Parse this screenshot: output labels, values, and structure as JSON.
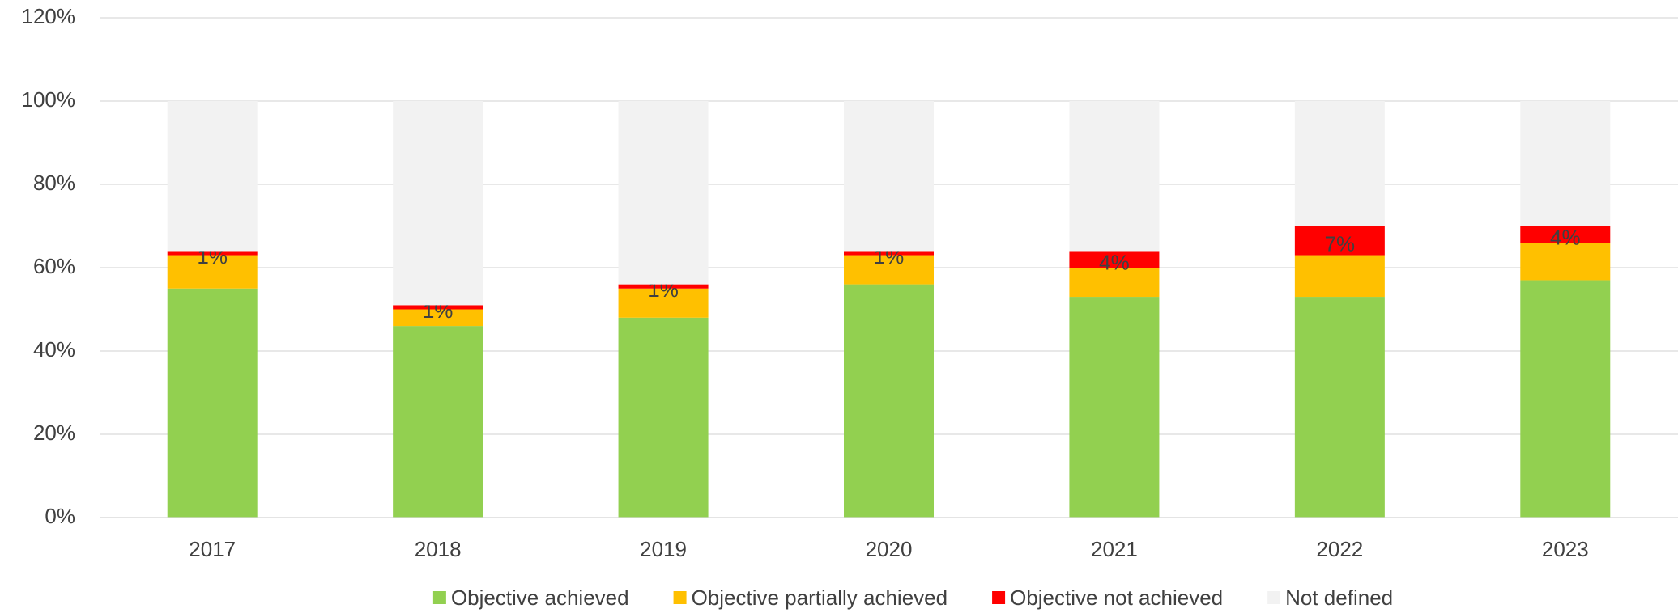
{
  "chart_data": {
    "type": "stacked_bar",
    "categories": [
      "2017",
      "2018",
      "2019",
      "2020",
      "2021",
      "2022",
      "2023"
    ],
    "series": [
      {
        "name": "Objective achieved",
        "color": "#92d050",
        "values": [
          55,
          46,
          48,
          56,
          53,
          53,
          57
        ]
      },
      {
        "name": "Objective partially achieved",
        "color": "#ffc000",
        "values": [
          8,
          4,
          7,
          7,
          7,
          10,
          9
        ]
      },
      {
        "name": "Objective not achieved",
        "color": "#ff0000",
        "values": [
          1,
          1,
          1,
          1,
          4,
          7,
          4
        ],
        "value_labels": [
          "1%",
          "1%",
          "1%",
          "1%",
          "4%",
          "7%",
          "4%"
        ]
      },
      {
        "name": "Not defined",
        "color": "#f2f2f2",
        "values": [
          36,
          49,
          44,
          36,
          36,
          30,
          30
        ]
      }
    ],
    "ylim": [
      0,
      120
    ],
    "yticks": [
      {
        "value": 0,
        "label": "0%"
      },
      {
        "value": 20,
        "label": "20%"
      },
      {
        "value": 40,
        "label": "40%"
      },
      {
        "value": 60,
        "label": "60%"
      },
      {
        "value": 80,
        "label": "80%"
      },
      {
        "value": 100,
        "label": "100%"
      },
      {
        "value": 120,
        "label": "120%"
      }
    ],
    "grid": true,
    "legend": "bottom"
  }
}
